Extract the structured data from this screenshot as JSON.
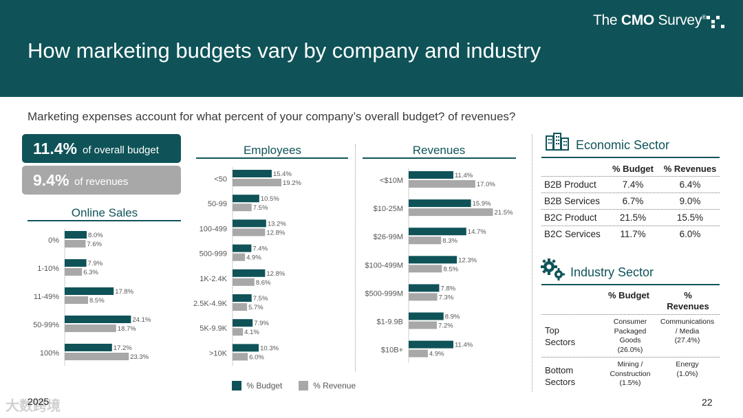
{
  "header": {
    "title": "How marketing budgets vary by company and industry",
    "brand_pre": "The ",
    "brand_bold": "CMO",
    "brand_post": " Survey",
    "brand_mark": "®"
  },
  "question": "Marketing expenses account for what percent of your company’s overall budget? of revenues?",
  "stats": {
    "budget_value": "11.4%",
    "budget_label": "of overall budget",
    "revenue_value": "9.4%",
    "revenue_label": "of revenues"
  },
  "colors": {
    "teal": "#0f5358",
    "gray": "#a8a8a8"
  },
  "chart_data": [
    {
      "type": "bar",
      "orientation": "horizontal",
      "title": "Online Sales",
      "categories": [
        "0%",
        "1-10%",
        "11-49%",
        "50-99%",
        "100%"
      ],
      "series": [
        {
          "name": "% Budget",
          "values": [
            8.0,
            7.9,
            17.8,
            24.1,
            17.2
          ]
        },
        {
          "name": "% Revenue",
          "values": [
            7.6,
            6.3,
            8.5,
            18.7,
            23.3
          ]
        }
      ],
      "labels": [
        [
          "8.0%",
          "7.9%",
          "17.8%",
          "24.1%",
          "17.2%"
        ],
        [
          "7.6%",
          "6.3%",
          "8.5%",
          "18.7%",
          "23.3%"
        ]
      ]
    },
    {
      "type": "bar",
      "orientation": "horizontal",
      "title": "Employees",
      "categories": [
        "<50",
        "50-99",
        "100-499",
        "500-999",
        "1K-2.4K",
        "2.5K-4.9K",
        "5K-9.9K",
        ">10K"
      ],
      "series": [
        {
          "name": "% Budget",
          "values": [
            15.4,
            10.5,
            13.2,
            7.4,
            12.8,
            7.5,
            7.9,
            10.3
          ]
        },
        {
          "name": "% Revenue",
          "values": [
            19.2,
            7.5,
            12.8,
            4.9,
            8.6,
            5.7,
            4.1,
            6.0
          ]
        }
      ],
      "labels": [
        [
          "15.4%",
          "10.5%",
          "13.2%",
          "7.4%",
          "12.8%",
          "7.5%",
          "7.9%",
          "10.3%"
        ],
        [
          "19.2%",
          "7.5%",
          "12.8%",
          "4.9%",
          "8.6%",
          "5.7%",
          "4.1%",
          "6.0%"
        ]
      ]
    },
    {
      "type": "bar",
      "orientation": "horizontal",
      "title": "Revenues",
      "categories": [
        "<$10M",
        "$10-25M",
        "$26-99M",
        "$100-499M",
        "$500-999M",
        "$1-9.9B",
        "$10B+"
      ],
      "series": [
        {
          "name": "% Budget",
          "values": [
            11.4,
            15.9,
            14.7,
            12.3,
            7.8,
            8.9,
            11.4
          ]
        },
        {
          "name": "% Revenue",
          "values": [
            17.0,
            21.5,
            8.3,
            8.5,
            7.3,
            7.2,
            4.9
          ]
        }
      ],
      "labels": [
        [
          "11.4%",
          "15.9%",
          "14.7%",
          "12.3%",
          "7.8%",
          "8.9%",
          "11.4%"
        ],
        [
          "17.0%",
          "21.5%",
          "8.3%",
          "8.5%",
          "7.3%",
          "7.2%",
          "4.9%"
        ]
      ]
    }
  ],
  "legend": {
    "budget": "% Budget",
    "revenue": "% Revenue"
  },
  "economic": {
    "title": "Economic Sector",
    "col_budget": "% Budget",
    "col_revenues": "% Revenues",
    "rows": [
      {
        "label": "B2B Product",
        "budget": "7.4%",
        "revenues": "6.4%"
      },
      {
        "label": "B2B Services",
        "budget": "6.7%",
        "revenues": "9.0%"
      },
      {
        "label": "B2C Product",
        "budget": "21.5%",
        "revenues": "15.5%"
      },
      {
        "label": "B2C Services",
        "budget": "11.7%",
        "revenues": "6.0%"
      }
    ]
  },
  "industry": {
    "title": "Industry Sector",
    "col_budget": "% Budget",
    "col_revenues_1": "%",
    "col_revenues_2": "Revenues",
    "top_label_1": "Top",
    "top_label_2": "Sectors",
    "top_budget": [
      "Consumer",
      "Packaged",
      "Goods",
      "(26.0%)"
    ],
    "top_revenues": [
      "Communications",
      "/ Media",
      "(27.4%)"
    ],
    "bottom_label_1": "Bottom",
    "bottom_label_2": "Sectors",
    "bottom_budget": [
      "Mining /",
      "Construction",
      "(1.5%)"
    ],
    "bottom_revenues": [
      "Energy",
      "(1.0%)"
    ]
  },
  "footer": {
    "year": "2025",
    "page": "22",
    "watermark": "大数跨境"
  }
}
